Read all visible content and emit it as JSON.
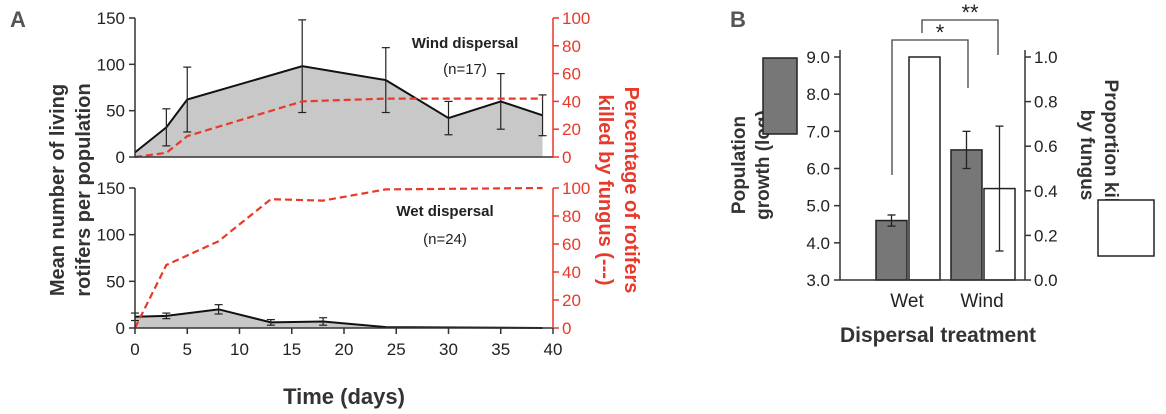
{
  "panels": {
    "a": "A",
    "b": "B"
  },
  "chart_data": [
    {
      "type": "area",
      "panel": "A (top)",
      "annotation": {
        "title": "Wind dispersal",
        "n": "(n=17)"
      },
      "x": [
        0,
        3,
        5,
        16,
        24,
        30,
        35,
        39
      ],
      "series": [
        {
          "values": [
            5,
            32,
            62,
            98,
            83,
            42,
            60,
            45
          ],
          "error": [
            0,
            20,
            35,
            50,
            35,
            18,
            30,
            22
          ]
        },
        {
          "values": [
            0,
            3,
            15,
            40,
            42,
            42,
            42,
            42
          ],
          "axis": "right",
          "style": "dashed"
        }
      ],
      "xlim": [
        0,
        40
      ],
      "ylim": [
        0,
        150
      ],
      "y2lim": [
        0,
        100
      ],
      "yticks": [
        "0",
        "50",
        "100",
        "150"
      ],
      "y2ticks": [
        "0",
        "20",
        "40",
        "60",
        "80",
        "100"
      ]
    },
    {
      "type": "area",
      "panel": "A (bottom)",
      "annotation": {
        "title": "Wet dispersal",
        "n": "(n=24)"
      },
      "x": [
        0,
        3,
        8,
        13,
        18,
        24,
        39
      ],
      "series": [
        {
          "values": [
            12,
            13,
            20,
            6,
            7,
            1,
            0
          ],
          "error": [
            4,
            3,
            5,
            3,
            4,
            0,
            0
          ]
        },
        {
          "values": [
            0,
            45,
            62,
            92,
            91,
            99,
            100
          ],
          "axis": "right",
          "style": "dashed"
        }
      ],
      "xlim": [
        0,
        40
      ],
      "ylim": [
        0,
        150
      ],
      "y2lim": [
        0,
        100
      ],
      "xticks": [
        "0",
        "5",
        "10",
        "15",
        "20",
        "25",
        "30",
        "35",
        "40"
      ],
      "yticks": [
        "0",
        "50",
        "100",
        "150"
      ],
      "y2ticks": [
        "0",
        "20",
        "40",
        "60",
        "80",
        "100"
      ],
      "xlabel": "Time (days)",
      "ylabel": "Mean number of living rotifers per population",
      "y2label": "Percentage of rotifers killed by fungus (---)"
    },
    {
      "type": "bar",
      "panel": "B",
      "categories": [
        "Wet",
        "Wind"
      ],
      "series": [
        {
          "fill": "#777777",
          "values": [
            4.6,
            6.5
          ],
          "error": [
            0.15,
            0.5
          ],
          "axis": "left"
        },
        {
          "fill": "#ffffff",
          "values": [
            1.0,
            0.41
          ],
          "error": [
            0,
            0.28
          ],
          "axis": "right"
        }
      ],
      "ylim": [
        3.0,
        9.0
      ],
      "y2lim": [
        0.0,
        1.0
      ],
      "yticks": [
        "3.0",
        "4.0",
        "5.0",
        "6.0",
        "7.0",
        "8.0",
        "9.0"
      ],
      "y2ticks": [
        "0.0",
        "0.2",
        "0.4",
        "0.6",
        "0.8",
        "1.0"
      ],
      "xlabel": "Dispersal treatment",
      "ylabel": "Population growth (log)",
      "y2label": "Proportion killed by fungus",
      "significance": [
        "*",
        "**"
      ]
    }
  ]
}
